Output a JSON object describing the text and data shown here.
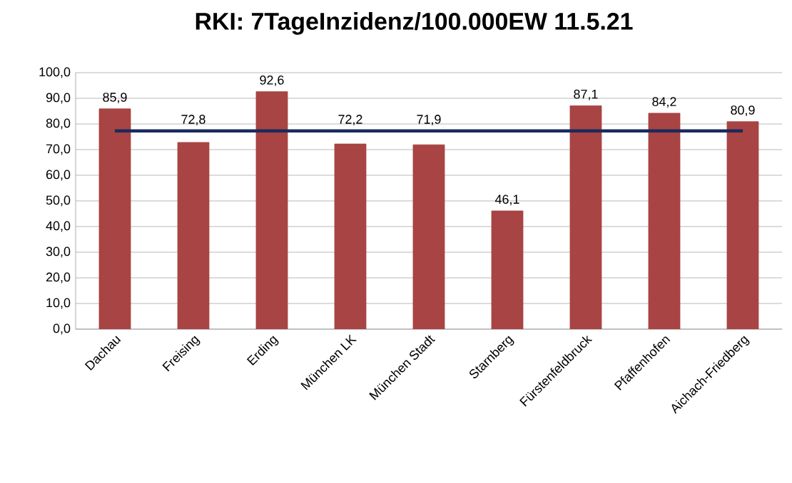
{
  "chart_data": {
    "type": "bar",
    "title": "RKI: 7TageInzidenz/100.000EW 11.5.21",
    "categories": [
      "Dachau",
      "Freising",
      "Erding",
      "München LK",
      "München Stadt",
      "Starnberg",
      "Fürstenfeldbruck",
      "Pfaffenhofen",
      "Aichach-Friedberg"
    ],
    "series": [
      {
        "color": "#a84443",
        "values": [
          85.9,
          72.8,
          92.6,
          72.2,
          71.9,
          46.1,
          87.1,
          84.2,
          80.9
        ],
        "value_labels": [
          "85,9",
          "72,8",
          "92,6",
          "72,2",
          "71,9",
          "46,1",
          "87,1",
          "84,2",
          "80,9"
        ]
      },
      {
        "type": "line",
        "color": "#1a2a5e",
        "values": [
          77.3,
          77.3,
          77.3,
          77.3,
          77.3,
          77.3,
          77.3,
          77.3,
          77.3
        ]
      }
    ],
    "ylim": [
      0,
      100
    ],
    "yticks": [
      {
        "value": 0,
        "label": "0,0"
      },
      {
        "value": 10,
        "label": "10,0"
      },
      {
        "value": 20,
        "label": "20,0"
      },
      {
        "value": 30,
        "label": "30,0"
      },
      {
        "value": 40,
        "label": "40,0"
      },
      {
        "value": 50,
        "label": "50,0"
      },
      {
        "value": 60,
        "label": "60,0"
      },
      {
        "value": 70,
        "label": "70,0"
      },
      {
        "value": 80,
        "label": "80,0"
      },
      {
        "value": 90,
        "label": "90,0"
      },
      {
        "value": 100,
        "label": "100,0"
      }
    ],
    "grid": "y"
  }
}
